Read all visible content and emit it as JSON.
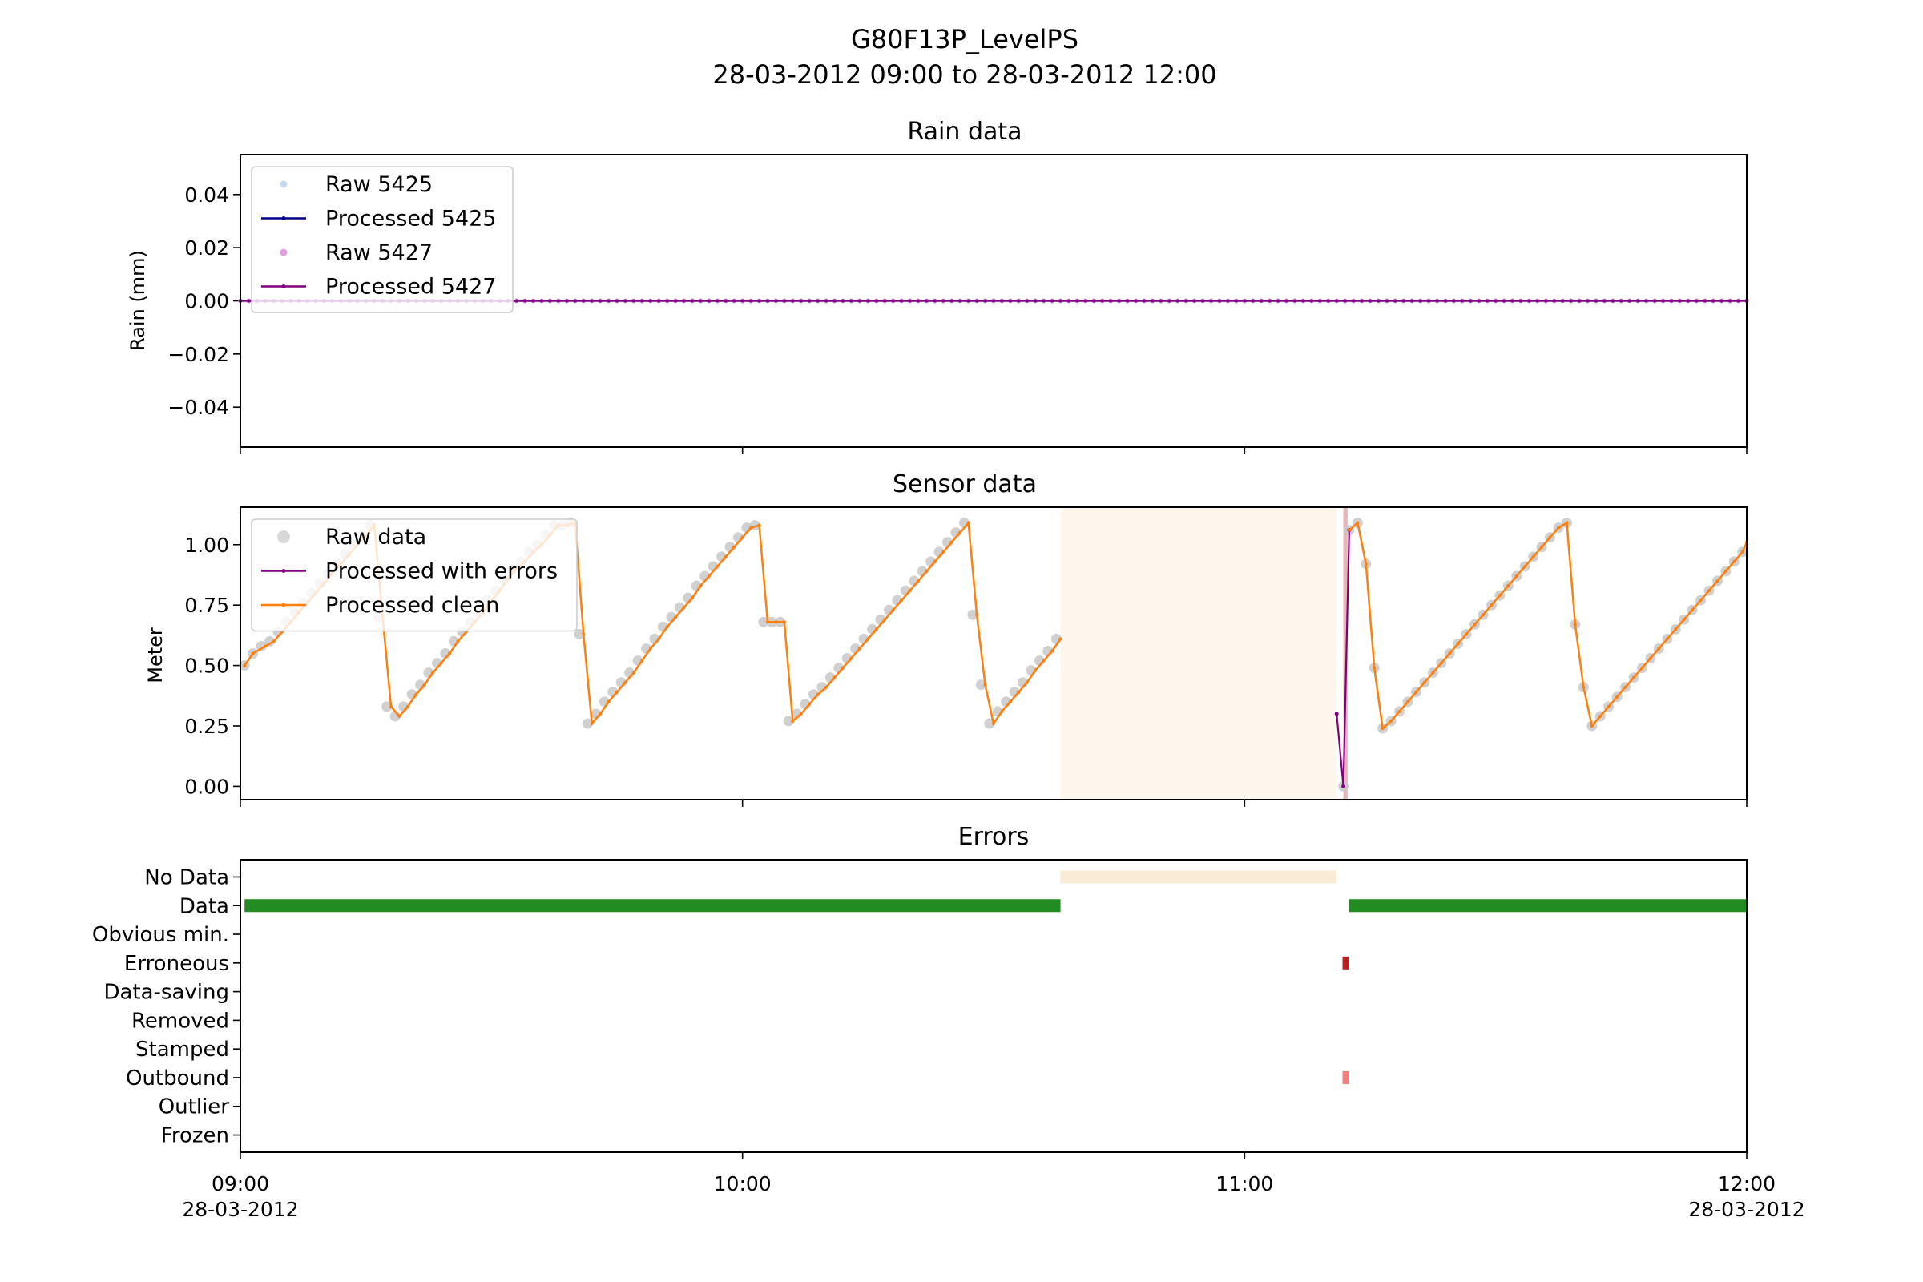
{
  "figure": {
    "title_line1": "G80F13P_LevelPS",
    "title_line2": "28-03-2012 09:00 to 28-03-2012 12:00"
  },
  "x_axis": {
    "range": [
      0,
      180
    ],
    "unit": "minutes after 09:00",
    "ticks": [
      {
        "value": 0,
        "label": "09:00",
        "sublabel": "28-03-2012"
      },
      {
        "value": 60,
        "label": "10:00",
        "sublabel": ""
      },
      {
        "value": 120,
        "label": "11:00",
        "sublabel": ""
      },
      {
        "value": 180,
        "label": "12:00",
        "sublabel": "28-03-2012"
      }
    ]
  },
  "rain_panel": {
    "title": "Rain data",
    "ylabel": "Rain (mm)",
    "ylim": [
      -0.055,
      0.055
    ],
    "yticks": [
      "0.04",
      "0.02",
      "0.00",
      "−0.02",
      "−0.04"
    ],
    "ytick_values": [
      0.04,
      0.02,
      0.0,
      -0.02,
      -0.04
    ],
    "legend": [
      {
        "label": "Raw 5425",
        "color": "#aec7e8",
        "marker": "dot"
      },
      {
        "label": "Processed 5425",
        "color": "#00008b",
        "marker": "line"
      },
      {
        "label": "Raw 5427",
        "color": "#da70d6",
        "marker": "dot"
      },
      {
        "label": "Processed 5427",
        "color": "#800080",
        "marker": "line"
      }
    ]
  },
  "sensor_panel": {
    "title": "Sensor data",
    "ylabel": "Meter",
    "ylim": [
      -0.055,
      1.155
    ],
    "yticks": [
      "1.00",
      "0.75",
      "0.50",
      "0.25",
      "0.00"
    ],
    "ytick_values": [
      1.0,
      0.75,
      0.5,
      0.25,
      0.0
    ],
    "legend": [
      {
        "label": "Raw data",
        "color": "#c8c8c8",
        "marker": "dot"
      },
      {
        "label": "Processed with errors",
        "color": "#800080",
        "marker": "line"
      },
      {
        "label": "Processed clean",
        "color": "#ff7f0e",
        "marker": "line"
      }
    ],
    "shaded_regions": [
      {
        "type": "No Data",
        "x": [
          98.0,
          131.0
        ],
        "color": "#faebd7",
        "opacity": 0.45
      },
      {
        "type": "Error",
        "x": [
          131.8,
          132.3
        ],
        "color": "#cd5c5c",
        "opacity": 0.45
      }
    ]
  },
  "errors_panel": {
    "title": "Errors",
    "categories": [
      "No Data",
      "Data",
      "Obvious min.",
      "Erroneous",
      "Data-saving",
      "Removed",
      "Stamped",
      "Outbound",
      "Outlier",
      "Frozen"
    ],
    "bars": [
      {
        "category": "No Data",
        "start": 98.0,
        "end": 131.0,
        "color": "#faebd7"
      },
      {
        "category": "Data",
        "start": 0.5,
        "end": 98.0,
        "color": "#228b22"
      },
      {
        "category": "Data",
        "start": 132.5,
        "end": 180.0,
        "color": "#228b22"
      },
      {
        "category": "Erroneous",
        "start": 131.7,
        "end": 132.5,
        "color": "#b22222"
      },
      {
        "category": "Outbound",
        "start": 131.7,
        "end": 132.5,
        "color": "#f08080"
      }
    ]
  },
  "chart_data": [
    {
      "type": "line",
      "title": "Rain data",
      "ylabel": "Rain (mm)",
      "ylim": [
        -0.055,
        0.055
      ],
      "series": [
        {
          "name": "Raw 5425",
          "x_start": 0,
          "x_end": 180,
          "x_step": 1,
          "value": 0.0
        },
        {
          "name": "Processed 5425",
          "x_start": 0,
          "x_end": 180,
          "x_step": 1,
          "value": 0.0
        },
        {
          "name": "Raw 5427",
          "x_start": 0,
          "x_end": 180,
          "x_step": 1,
          "value": 0.0
        },
        {
          "name": "Processed 5427",
          "x_start": 0,
          "x_end": 180,
          "x_step": 1,
          "value": 0.0
        }
      ]
    },
    {
      "type": "line",
      "title": "Sensor data",
      "ylabel": "Meter",
      "ylim": [
        -0.055,
        1.155
      ],
      "series": [
        {
          "name": "Processed clean",
          "x": [
            0.5,
            1.5,
            3,
            4,
            5,
            6,
            7,
            8,
            9,
            10,
            11,
            12,
            13,
            14,
            15,
            16,
            17,
            18,
            19,
            20,
            21,
            22,
            23,
            24,
            25,
            26,
            27,
            28,
            29,
            30,
            31,
            32,
            33,
            34,
            35,
            36,
            37,
            38,
            39,
            40,
            41,
            42,
            43,
            44,
            45,
            46,
            47,
            48,
            49,
            50,
            51,
            52,
            53,
            54,
            55,
            56,
            57,
            58,
            59,
            60,
            61,
            62,
            63,
            64,
            65,
            66,
            67,
            68,
            69,
            70,
            71,
            72,
            73,
            74,
            75,
            76,
            77,
            78,
            79,
            80,
            81,
            82,
            83,
            84,
            85,
            86,
            87,
            88,
            89,
            90,
            91,
            92,
            93,
            94,
            95,
            96,
            97,
            98
          ],
          "y": [
            0.5,
            0.55,
            0.58,
            0.6,
            0.64,
            0.68,
            0.72,
            0.76,
            0.8,
            0.84,
            0.88,
            0.92,
            0.96,
            1.0,
            1.04,
            1.08,
            0.7,
            0.33,
            0.29,
            0.33,
            0.38,
            0.42,
            0.47,
            0.51,
            0.55,
            0.6,
            0.64,
            0.68,
            0.72,
            0.77,
            0.81,
            0.86,
            0.9,
            0.93,
            0.97,
            1.0,
            1.04,
            1.08,
            1.08,
            1.09,
            0.63,
            0.26,
            0.3,
            0.35,
            0.39,
            0.43,
            0.47,
            0.52,
            0.57,
            0.61,
            0.66,
            0.7,
            0.74,
            0.78,
            0.83,
            0.87,
            0.91,
            0.95,
            0.99,
            1.03,
            1.07,
            1.08,
            0.68,
            0.68,
            0.68,
            0.27,
            0.3,
            0.34,
            0.38,
            0.41,
            0.45,
            0.49,
            0.53,
            0.57,
            0.61,
            0.65,
            0.69,
            0.73,
            0.77,
            0.81,
            0.85,
            0.89,
            0.93,
            0.97,
            1.01,
            1.05,
            1.09,
            0.71,
            0.42,
            0.26,
            0.31,
            0.35,
            0.39,
            0.43,
            0.48,
            0.52,
            0.56,
            0.61
          ]
        },
        {
          "name": "Processed clean",
          "x": [
            132.5,
            133.5,
            134.5,
            135.5,
            136.5,
            137.5,
            138.5,
            139.5,
            140.5,
            141.5,
            142.5,
            143.5,
            144.5,
            145.5,
            146.5,
            147.5,
            148.5,
            149.5,
            150.5,
            151.5,
            152.5,
            153.5,
            154.5,
            155.5,
            156.5,
            157.5,
            158.5,
            159.5,
            160.5,
            161.5,
            162.5,
            163.5,
            164.5,
            165.5,
            166.5,
            167.5,
            168.5,
            169.5,
            170.5,
            171.5,
            172.5,
            173.5,
            174.5,
            175.5,
            176.5,
            177.5,
            178.5,
            179.5,
            180
          ],
          "y": [
            1.06,
            1.09,
            0.92,
            0.49,
            0.24,
            0.27,
            0.31,
            0.35,
            0.39,
            0.43,
            0.47,
            0.51,
            0.55,
            0.59,
            0.63,
            0.67,
            0.71,
            0.75,
            0.79,
            0.83,
            0.87,
            0.91,
            0.95,
            0.99,
            1.03,
            1.07,
            1.09,
            0.67,
            0.41,
            0.25,
            0.29,
            0.33,
            0.37,
            0.41,
            0.45,
            0.49,
            0.53,
            0.57,
            0.61,
            0.65,
            0.69,
            0.73,
            0.77,
            0.81,
            0.85,
            0.89,
            0.93,
            0.97,
            1.01
          ]
        },
        {
          "name": "Processed with errors",
          "x": [
            131.0,
            131.8,
            132.5
          ],
          "y": [
            0.3,
            0.0,
            1.06
          ]
        },
        {
          "name": "Raw data",
          "x": [
            0.5,
            1.5,
            2.5,
            3.5,
            4.5,
            5.5,
            6.5,
            7.5,
            8.5,
            9.5,
            10.5,
            11.5,
            12.5,
            13.5,
            14.5,
            15.5,
            16.5,
            17.5,
            18.5,
            19.5,
            20.5,
            21.5,
            22.5,
            23.5,
            24.5,
            25.5,
            26.5,
            27.5,
            28.5,
            29.5,
            30.5,
            31.5,
            32.5,
            33.5,
            34.5,
            35.5,
            36.5,
            37.5,
            38.5,
            39.5,
            40.5,
            41.5,
            42.5,
            43.5,
            44.5,
            45.5,
            46.5,
            47.5,
            48.5,
            49.5,
            50.5,
            51.5,
            52.5,
            53.5,
            54.5,
            55.5,
            56.5,
            57.5,
            58.5,
            59.5,
            60.5,
            61.5,
            62.5,
            63.5,
            64.5,
            65.5,
            66.5,
            67.5,
            68.5,
            69.5,
            70.5,
            71.5,
            72.5,
            73.5,
            74.5,
            75.5,
            76.5,
            77.5,
            78.5,
            79.5,
            80.5,
            81.5,
            82.5,
            83.5,
            84.5,
            85.5,
            86.5,
            87.5,
            88.5,
            89.5,
            90.5,
            91.5,
            92.5,
            93.5,
            94.5,
            95.5,
            96.5,
            97.5,
            131.8,
            132.5,
            133.5,
            134.5,
            135.5,
            136.5,
            137.5,
            138.5,
            139.5,
            140.5,
            141.5,
            142.5,
            143.5,
            144.5,
            145.5,
            146.5,
            147.5,
            148.5,
            149.5,
            150.5,
            151.5,
            152.5,
            153.5,
            154.5,
            155.5,
            156.5,
            157.5,
            158.5,
            159.5,
            160.5,
            161.5,
            162.5,
            163.5,
            164.5,
            165.5,
            166.5,
            167.5,
            168.5,
            169.5,
            170.5,
            171.5,
            172.5,
            173.5,
            174.5,
            175.5,
            176.5,
            177.5,
            178.5,
            179.5
          ],
          "y": [
            0.5,
            0.55,
            0.58,
            0.6,
            0.64,
            0.68,
            0.72,
            0.76,
            0.8,
            0.84,
            0.88,
            0.92,
            0.96,
            1.0,
            1.04,
            1.08,
            0.7,
            0.33,
            0.29,
            0.33,
            0.38,
            0.42,
            0.47,
            0.51,
            0.55,
            0.6,
            0.64,
            0.68,
            0.72,
            0.77,
            0.81,
            0.86,
            0.9,
            0.93,
            0.97,
            1.0,
            1.04,
            1.08,
            1.08,
            1.09,
            0.63,
            0.26,
            0.3,
            0.35,
            0.39,
            0.43,
            0.47,
            0.52,
            0.57,
            0.61,
            0.66,
            0.7,
            0.74,
            0.78,
            0.83,
            0.87,
            0.91,
            0.95,
            0.99,
            1.03,
            1.07,
            1.08,
            0.68,
            0.68,
            0.68,
            0.27,
            0.3,
            0.34,
            0.38,
            0.41,
            0.45,
            0.49,
            0.53,
            0.57,
            0.61,
            0.65,
            0.69,
            0.73,
            0.77,
            0.81,
            0.85,
            0.89,
            0.93,
            0.97,
            1.01,
            1.05,
            1.09,
            0.71,
            0.42,
            0.26,
            0.31,
            0.35,
            0.39,
            0.43,
            0.48,
            0.52,
            0.56,
            0.61,
            0.0,
            1.06,
            1.09,
            0.92,
            0.49,
            0.24,
            0.27,
            0.31,
            0.35,
            0.39,
            0.43,
            0.47,
            0.51,
            0.55,
            0.59,
            0.63,
            0.67,
            0.71,
            0.75,
            0.79,
            0.83,
            0.87,
            0.91,
            0.95,
            0.99,
            1.03,
            1.07,
            1.09,
            0.67,
            0.41,
            0.25,
            0.29,
            0.33,
            0.37,
            0.41,
            0.45,
            0.49,
            0.53,
            0.57,
            0.61,
            0.65,
            0.69,
            0.73,
            0.77,
            0.81,
            0.85,
            0.89,
            0.93,
            0.97
          ]
        }
      ]
    },
    {
      "type": "bar",
      "title": "Errors",
      "categories": [
        "No Data",
        "Data",
        "Obvious min.",
        "Erroneous",
        "Data-saving",
        "Removed",
        "Stamped",
        "Outbound",
        "Outlier",
        "Frozen"
      ],
      "intervals": [
        {
          "category": "No Data",
          "start": 98.0,
          "end": 131.0
        },
        {
          "category": "Data",
          "start": 0.5,
          "end": 98.0
        },
        {
          "category": "Data",
          "start": 132.5,
          "end": 180.0
        },
        {
          "category": "Erroneous",
          "start": 131.7,
          "end": 132.5
        },
        {
          "category": "Outbound",
          "start": 131.7,
          "end": 132.5
        }
      ]
    }
  ]
}
